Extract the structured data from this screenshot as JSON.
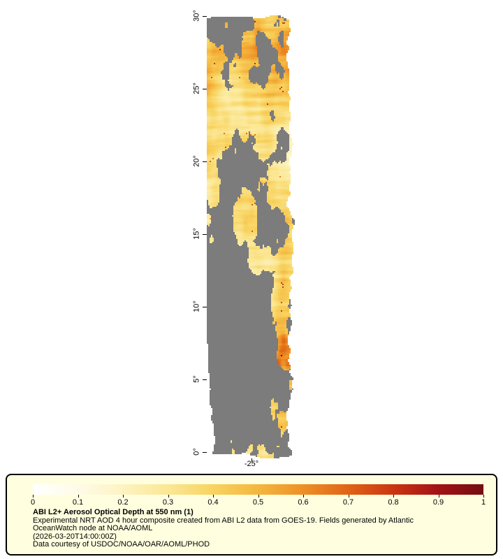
{
  "map": {
    "background_color": "#ffffff",
    "no_data_color": "#7c7c7c",
    "water_color": "#a9b6c6",
    "y_axis": {
      "tick_labels": [
        "30°",
        "25°",
        "20°",
        "15°",
        "10°",
        "5°",
        "0°"
      ]
    },
    "x_axis": {
      "tick_labels": [
        "-25°"
      ]
    }
  },
  "legend": {
    "background_color": "#ffffe0",
    "border_color": "#000000",
    "colorbar": {
      "min": 0,
      "max": 1,
      "tick_labels": [
        "0",
        "0.1",
        "0.2",
        "0.3",
        "0.4",
        "0.5",
        "0.6",
        "0.7",
        "0.8",
        "0.9",
        "1"
      ],
      "gradient_stops": [
        "#ffffff",
        "#fffbe8",
        "#fdf3c2",
        "#fbe795",
        "#f8d360",
        "#f4b63e",
        "#ee9026",
        "#e06316",
        "#cb3511",
        "#a21215",
        "#740d12"
      ]
    },
    "title": "ABI L2+ Aerosol Optical Depth at 550 nm (1)",
    "description_lines": [
      "Experimental NRT AOD 4 hour composite created from ABI L2 data from GOES-19. Fields generated by Atlantic",
      "OceanWatch node at NOAA/AOML"
    ],
    "timestamp": "(2026-03-20T14:00:00Z)",
    "credit": "Data courtesy of USDOC/NOAA/OAR/AOML/PHOD"
  }
}
